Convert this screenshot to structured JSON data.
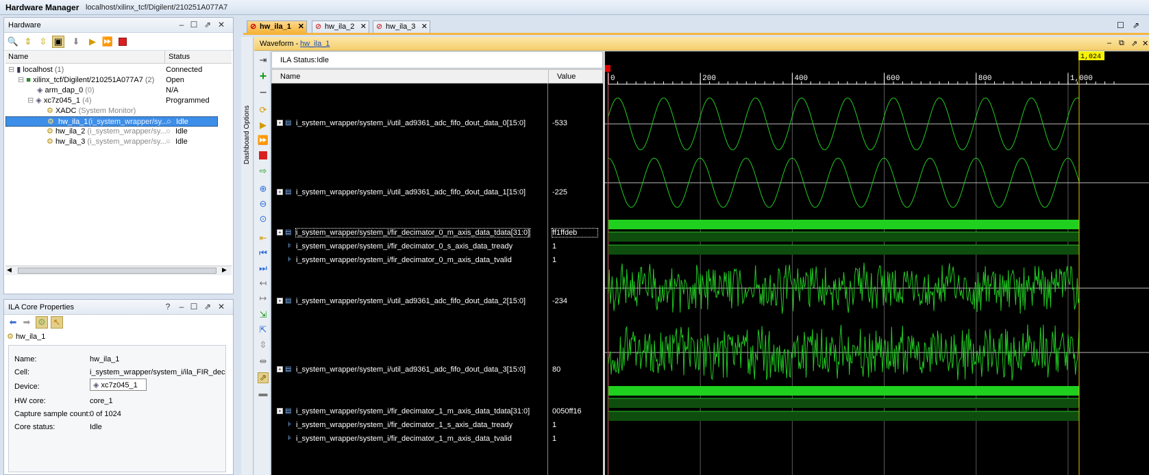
{
  "window": {
    "title": "Hardware Manager",
    "path": "localhost/xilinx_tcf/Digilent/210251A077A7"
  },
  "hardware": {
    "title": "Hardware",
    "columns": [
      "Name",
      "Status"
    ],
    "rows": [
      {
        "name": "localhost",
        "suffix": "(1)",
        "status": "Connected"
      },
      {
        "name": "xilinx_tcf/Digilent/210251A077A7",
        "suffix": "(2)",
        "status": "Open"
      },
      {
        "name": "arm_dap_0",
        "suffix": "(0)",
        "status": "N/A"
      },
      {
        "name": "xc7z045_1",
        "suffix": "(4)",
        "status": "Programmed"
      },
      {
        "name": "XADC",
        "suffix": "(System Monitor)",
        "status": ""
      },
      {
        "name": "hw_ila_1",
        "suffix": "(i_system_wrapper/sy...",
        "status": "Idle"
      },
      {
        "name": "hw_ila_2",
        "suffix": "(i_system_wrapper/sy...",
        "status": "Idle"
      },
      {
        "name": "hw_ila_3",
        "suffix": "(i_system_wrapper/sy...",
        "status": "Idle"
      }
    ]
  },
  "props": {
    "title": "ILA Core Properties",
    "core": "hw_ila_1",
    "fields": [
      {
        "label": "Name:",
        "value": "hw_ila_1"
      },
      {
        "label": "Cell:",
        "value": "i_system_wrapper/system_i/ila_FIR_dec"
      },
      {
        "label": "Device:",
        "value": "xc7z045_1"
      },
      {
        "label": "HW core:",
        "value": "core_1"
      },
      {
        "label": "Capture sample count:",
        "value": "0 of 1024"
      },
      {
        "label": "Core status:",
        "value": "Idle"
      }
    ]
  },
  "tabs": [
    "hw_ila_1",
    "hw_ila_2",
    "hw_ila_3"
  ],
  "waveform": {
    "title": "Waveform - ",
    "link": "hw_ila_1",
    "dashboard": "Dashboard Options",
    "status": "ILA Status:Idle",
    "col_name": "Name",
    "col_value": "Value",
    "cursor_label": "1,024",
    "axis_ticks": [
      "0",
      "200",
      "400",
      "600",
      "800",
      "1,000"
    ],
    "signals": [
      {
        "name": "i_system_wrapper/system_i/util_ad9361_adc_fifo_dout_data_0[15:0]",
        "value": "-533"
      },
      {
        "name": "i_system_wrapper/system_i/util_ad9361_adc_fifo_dout_data_1[15:0]",
        "value": "-225"
      },
      {
        "name": "i_system_wrapper/system_i/fir_decimator_0_m_axis_data_tdata[31:0]",
        "value": "ff1ffdeb"
      },
      {
        "name": "i_system_wrapper/system_i/fir_decimator_0_s_axis_data_tready",
        "value": "1"
      },
      {
        "name": "i_system_wrapper/system_i/fir_decimator_0_m_axis_data_tvalid",
        "value": "1"
      },
      {
        "name": "i_system_wrapper/system_i/util_ad9361_adc_fifo_dout_data_2[15:0]",
        "value": "-234"
      },
      {
        "name": "i_system_wrapper/system_i/util_ad9361_adc_fifo_dout_data_3[15:0]",
        "value": "80"
      },
      {
        "name": "i_system_wrapper/system_i/fir_decimator_1_m_axis_data_tdata[31:0]",
        "value": "0050ff16"
      },
      {
        "name": "i_system_wrapper/system_i/fir_decimator_1_s_axis_data_tready",
        "value": "1"
      },
      {
        "name": "i_system_wrapper/system_i/fir_decimator_1_m_axis_data_tvalid",
        "value": "1"
      }
    ]
  },
  "colors": {
    "wave": "#22cc22",
    "bus": "#1fd01f",
    "cursor": "#e8c800",
    "marker": "#e00000"
  }
}
